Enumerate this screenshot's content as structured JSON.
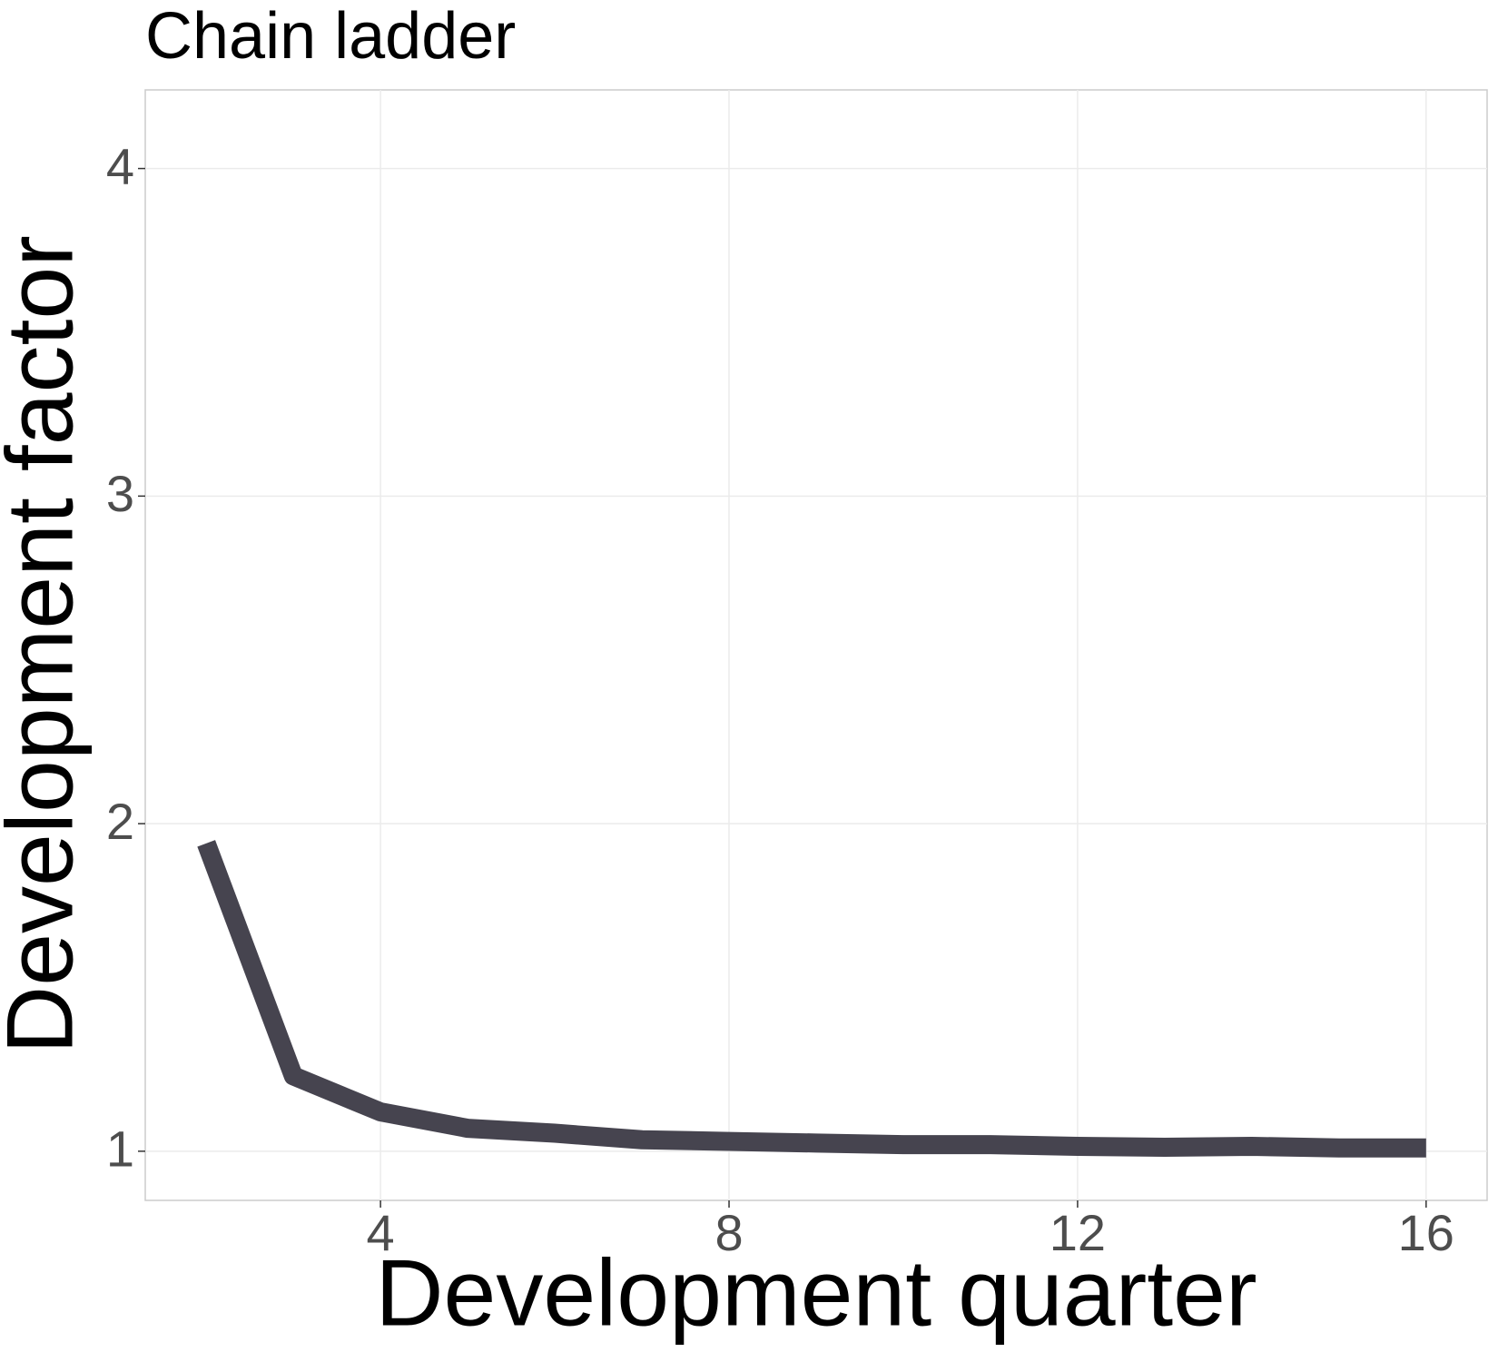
{
  "chart_data": {
    "type": "line",
    "title": "Chain ladder",
    "x_label": "Development quarter",
    "y_label": "Development factor",
    "x": [
      2,
      3,
      4,
      5,
      6,
      7,
      8,
      9,
      10,
      11,
      12,
      13,
      14,
      15,
      16
    ],
    "series": [
      {
        "color": "#46444f",
        "values": [
          1.94,
          1.23,
          1.12,
          1.07,
          1.055,
          1.035,
          1.03,
          1.025,
          1.02,
          1.02,
          1.015,
          1.012,
          1.015,
          1.01,
          1.01
        ]
      }
    ],
    "xlim": [
      1.3,
      16.7
    ],
    "ylim": [
      0.85,
      4.24
    ],
    "xticks": [
      4,
      8,
      12,
      16
    ],
    "yticks": [
      1,
      2,
      3,
      4
    ],
    "grid": true
  }
}
